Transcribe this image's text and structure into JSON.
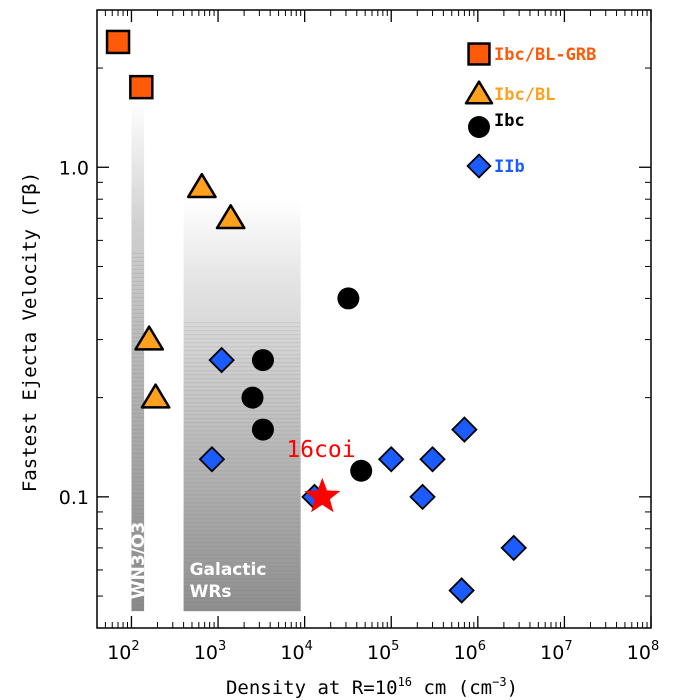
{
  "chart_data": {
    "type": "scatter",
    "title": "",
    "xlabel_main": "Density at R=10",
    "xlabel_sup": "16",
    "xlabel_mid": " cm (cm",
    "xlabel_sup2": "−3",
    "xlabel_end": ")",
    "ylabel": "Fastest Ejecta Velocity (Γβ)",
    "x_scale": "log",
    "y_scale": "log",
    "xlim": [
      40,
      100000000
    ],
    "ylim": [
      0.04,
      3.0
    ],
    "x_ticks": [
      {
        "value": 100,
        "base": "10",
        "exp": "2"
      },
      {
        "value": 1000,
        "base": "10",
        "exp": "3"
      },
      {
        "value": 10000,
        "base": "10",
        "exp": "4"
      },
      {
        "value": 100000,
        "base": "10",
        "exp": "5"
      },
      {
        "value": 1000000,
        "base": "10",
        "exp": "6"
      },
      {
        "value": 10000000,
        "base": "10",
        "exp": "7"
      },
      {
        "value": 100000000,
        "base": "10",
        "exp": "8"
      }
    ],
    "y_ticks": [
      {
        "value": 0.1,
        "label": "0.1"
      },
      {
        "value": 1.0,
        "label": "1.0"
      }
    ],
    "bands": [
      {
        "name": "WN3/O3",
        "x": [
          100,
          140
        ],
        "y": [
          0.045,
          1.6
        ]
      },
      {
        "name": "Galactic WRs",
        "name_line1": "Galactic",
        "name_line2": "WRs",
        "x": [
          400,
          9000
        ],
        "y": [
          0.045,
          0.8
        ]
      }
    ],
    "legend_position": "top-right",
    "legend": [
      {
        "label": "Ibc/BL-GRB",
        "marker": "square",
        "color": "#ff5a0a"
      },
      {
        "label": "Ibc/BL",
        "marker": "triangle",
        "color": "#ffa11e"
      },
      {
        "label": "Ibc",
        "marker": "circle",
        "color": "#000000"
      },
      {
        "label": "IIb",
        "marker": "diamond",
        "color": "#1a5cff"
      }
    ],
    "series": [
      {
        "name": "Ibc/BL-GRB",
        "marker": "square",
        "color": "#ff5a0a",
        "points": [
          [
            70,
            2.4
          ],
          [
            130,
            1.75
          ]
        ]
      },
      {
        "name": "Ibc/BL",
        "marker": "triangle",
        "color": "#ffa11e",
        "points": [
          [
            650,
            0.87
          ],
          [
            1400,
            0.7
          ],
          [
            160,
            0.3
          ],
          [
            190,
            0.2
          ]
        ]
      },
      {
        "name": "Ibc",
        "marker": "circle",
        "color": "#000000",
        "points": [
          [
            32000,
            0.4
          ],
          [
            3300,
            0.26
          ],
          [
            2500,
            0.2
          ],
          [
            3300,
            0.16
          ],
          [
            45000,
            0.12
          ]
        ]
      },
      {
        "name": "IIb",
        "marker": "diamond",
        "color": "#1a5cff",
        "points": [
          [
            1100,
            0.26
          ],
          [
            850,
            0.13
          ],
          [
            13000,
            0.1
          ],
          [
            100000,
            0.13
          ],
          [
            230000,
            0.1
          ],
          [
            300000,
            0.13
          ],
          [
            700000,
            0.16
          ],
          [
            2600000,
            0.07
          ],
          [
            650000,
            0.052
          ]
        ]
      }
    ],
    "highlight": {
      "label": "16coi",
      "marker": "star",
      "color": "#ff0000",
      "x": 16000,
      "y": 0.1
    }
  }
}
